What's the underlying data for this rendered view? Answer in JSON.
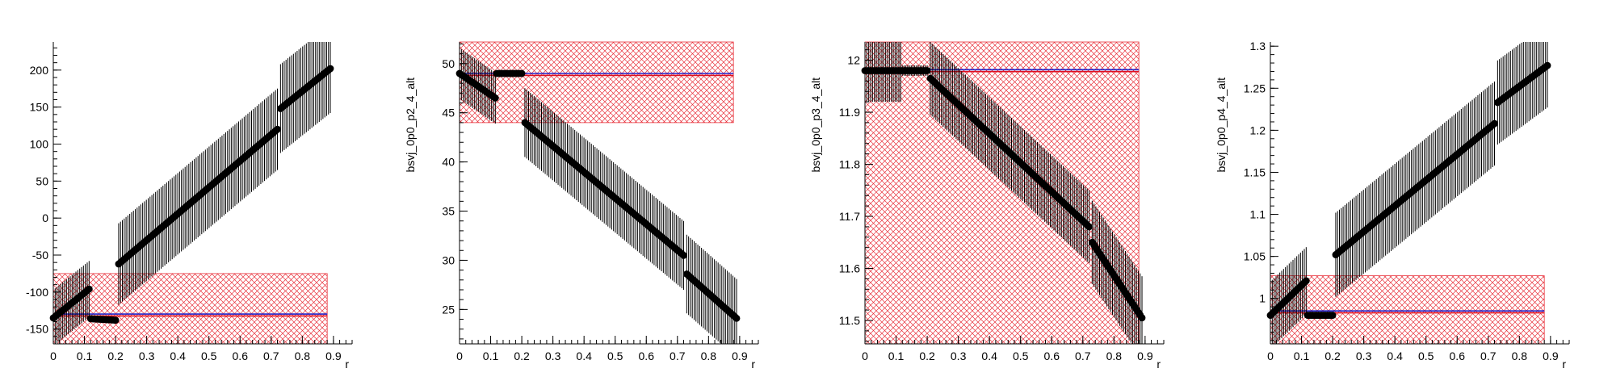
{
  "chart_data": [
    {
      "type": "scatter",
      "xlabel": "r",
      "ylabel": "",
      "xlim": [
        0,
        0.96
      ],
      "ylim": [
        -170,
        238
      ],
      "xticks": [
        "0",
        "0.1",
        "0.2",
        "0.3",
        "0.4",
        "0.5",
        "0.6",
        "0.7",
        "0.8",
        "0.9"
      ],
      "xtick_values": [
        0,
        0.1,
        0.2,
        0.3,
        0.4,
        0.5,
        0.6,
        0.7,
        0.8,
        0.9
      ],
      "yticks": [
        "-150",
        "-100",
        "-50",
        "0",
        "50",
        "100",
        "150",
        "200"
      ],
      "ytick_values": [
        -150,
        -100,
        -50,
        0,
        50,
        100,
        150,
        200
      ],
      "ref_line": -131,
      "band": {
        "x": [
          0,
          0.88
        ],
        "y": [
          -170,
          -75
        ]
      },
      "segments": [
        {
          "x0": 0.0,
          "x1": 0.115,
          "y0": -135,
          "y1": -96,
          "err": 38
        },
        {
          "x0": 0.12,
          "x1": 0.2,
          "y0": -136,
          "y1": -138,
          "err": 3
        },
        {
          "x0": 0.21,
          "x1": 0.72,
          "y0": -62,
          "y1": 120,
          "err": 55
        },
        {
          "x0": 0.73,
          "x1": 0.89,
          "y0": 148,
          "y1": 202,
          "err": 60
        }
      ]
    },
    {
      "type": "scatter",
      "xlabel": "r",
      "ylabel": "bsvj_0p0_p2_4_alt",
      "xlim": [
        0,
        0.96
      ],
      "ylim": [
        21.5,
        52.2
      ],
      "xticks": [
        "0",
        "0.1",
        "0.2",
        "0.3",
        "0.4",
        "0.5",
        "0.6",
        "0.7",
        "0.8",
        "0.9"
      ],
      "xtick_values": [
        0,
        0.1,
        0.2,
        0.3,
        0.4,
        0.5,
        0.6,
        0.7,
        0.8,
        0.9
      ],
      "yticks": [
        "25",
        "30",
        "35",
        "40",
        "45",
        "50"
      ],
      "ytick_values": [
        25,
        30,
        35,
        40,
        45,
        50
      ],
      "ref_line": 48.9,
      "band": {
        "x": [
          0,
          0.88
        ],
        "y": [
          44,
          52.2
        ]
      },
      "segments": [
        {
          "x0": 0.0,
          "x1": 0.115,
          "y0": 49.0,
          "y1": 46.5,
          "err": 2.6
        },
        {
          "x0": 0.12,
          "x1": 0.2,
          "y0": 49.0,
          "y1": 49.0,
          "err": 0.3
        },
        {
          "x0": 0.21,
          "x1": 0.72,
          "y0": 44.0,
          "y1": 30.5,
          "err": 3.5
        },
        {
          "x0": 0.73,
          "x1": 0.89,
          "y0": 28.6,
          "y1": 24.1,
          "err": 4.0
        }
      ]
    },
    {
      "type": "scatter",
      "xlabel": "r",
      "ylabel": "bsvj_0p0_p3_4_alt",
      "xlim": [
        0,
        0.96
      ],
      "ylim": [
        11.455,
        12.035
      ],
      "xticks": [
        "0",
        "0.1",
        "0.2",
        "0.3",
        "0.4",
        "0.5",
        "0.6",
        "0.7",
        "0.8",
        "0.9"
      ],
      "xtick_values": [
        0,
        0.1,
        0.2,
        0.3,
        0.4,
        0.5,
        0.6,
        0.7,
        0.8,
        0.9
      ],
      "yticks": [
        "11.5",
        "11.6",
        "11.7",
        "11.8",
        "11.9",
        "12"
      ],
      "ytick_values": [
        11.5,
        11.6,
        11.7,
        11.8,
        11.9,
        12
      ],
      "ref_line": 11.98,
      "band": {
        "x": [
          0,
          0.88
        ],
        "y": [
          11.455,
          12.035
        ]
      },
      "segments": [
        {
          "x0": 0.0,
          "x1": 0.115,
          "y0": 11.98,
          "y1": 11.98,
          "err": 0.06
        },
        {
          "x0": 0.12,
          "x1": 0.2,
          "y0": 11.98,
          "y1": 11.98,
          "err": 0.01
        },
        {
          "x0": 0.21,
          "x1": 0.72,
          "y0": 11.965,
          "y1": 11.68,
          "err": 0.07
        },
        {
          "x0": 0.73,
          "x1": 0.89,
          "y0": 11.65,
          "y1": 11.505,
          "err": 0.08
        }
      ]
    },
    {
      "type": "scatter",
      "xlabel": "r",
      "ylabel": "bsvj_0p0_p4_4_alt",
      "xlim": [
        0,
        0.96
      ],
      "ylim": [
        0.946,
        1.305
      ],
      "xticks": [
        "0",
        "0.1",
        "0.2",
        "0.3",
        "0.4",
        "0.5",
        "0.6",
        "0.7",
        "0.8",
        "0.9"
      ],
      "xtick_values": [
        0,
        0.1,
        0.2,
        0.3,
        0.4,
        0.5,
        0.6,
        0.7,
        0.8,
        0.9
      ],
      "yticks": [
        "1",
        "1.05",
        "1.1",
        "1.15",
        "1.2",
        "1.25",
        "1.3"
      ],
      "ytick_values": [
        1,
        1.05,
        1.1,
        1.15,
        1.2,
        1.25,
        1.3
      ],
      "ref_line": 0.984,
      "band": {
        "x": [
          0,
          0.88
        ],
        "y": [
          0.946,
          1.027
        ]
      },
      "segments": [
        {
          "x0": 0.0,
          "x1": 0.115,
          "y0": 0.98,
          "y1": 1.021,
          "err": 0.04
        },
        {
          "x0": 0.12,
          "x1": 0.2,
          "y0": 0.98,
          "y1": 0.98,
          "err": 0.003
        },
        {
          "x0": 0.21,
          "x1": 0.72,
          "y0": 1.052,
          "y1": 1.208,
          "err": 0.05
        },
        {
          "x0": 0.73,
          "x1": 0.89,
          "y0": 1.233,
          "y1": 1.277,
          "err": 0.05
        }
      ]
    }
  ],
  "colors": {
    "band": "#e8303a",
    "ref_line_red": "#e01020",
    "ref_line_blue": "#2020c8",
    "marker": "#000000"
  }
}
